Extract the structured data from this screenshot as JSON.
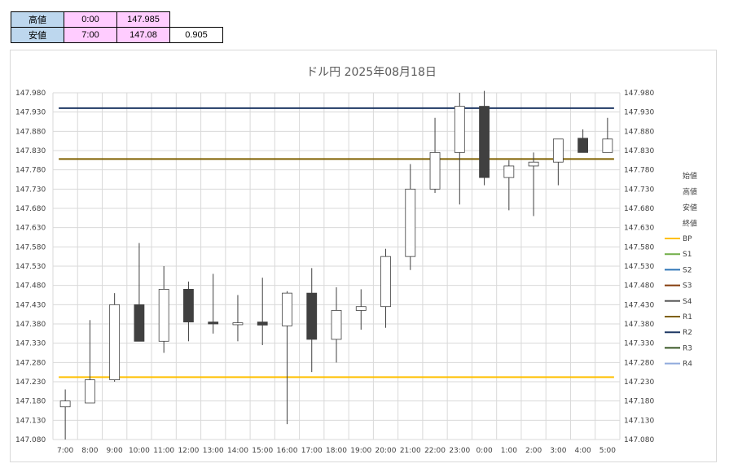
{
  "info_table": {
    "rows": [
      {
        "label": "高値",
        "time": "0:00",
        "price": "147.985",
        "diff": ""
      },
      {
        "label": "安値",
        "time": "7:00",
        "price": "147.08",
        "diff": "0.905"
      }
    ]
  },
  "chart_data": {
    "type": "candlestick",
    "title": "ドル円  2025年08月18日",
    "ylim": [
      147.08,
      147.98
    ],
    "y_ticks": [
      "147.080",
      "147.130",
      "147.180",
      "147.230",
      "147.280",
      "147.330",
      "147.380",
      "147.430",
      "147.480",
      "147.530",
      "147.580",
      "147.630",
      "147.680",
      "147.730",
      "147.780",
      "147.830",
      "147.880",
      "147.930",
      "147.980"
    ],
    "grid": true,
    "categories": [
      "7:00",
      "8:00",
      "9:00",
      "10:00",
      "11:00",
      "12:00",
      "13:00",
      "14:00",
      "15:00",
      "16:00",
      "17:00",
      "18:00",
      "19:00",
      "20:00",
      "21:00",
      "22:00",
      "23:00",
      "0:00",
      "1:00",
      "2:00",
      "3:00",
      "4:00",
      "5:00"
    ],
    "candles": [
      {
        "open": 147.165,
        "high": 147.21,
        "low": 147.08,
        "close": 147.18
      },
      {
        "open": 147.175,
        "high": 147.39,
        "low": 147.175,
        "close": 147.235
      },
      {
        "open": 147.235,
        "high": 147.46,
        "low": 147.23,
        "close": 147.43
      },
      {
        "open": 147.43,
        "high": 147.59,
        "low": 147.335,
        "close": 147.335
      },
      {
        "open": 147.335,
        "high": 147.53,
        "low": 147.305,
        "close": 147.47
      },
      {
        "open": 147.47,
        "high": 147.49,
        "low": 147.335,
        "close": 147.385
      },
      {
        "open": 147.385,
        "high": 147.51,
        "low": 147.355,
        "close": 147.38
      },
      {
        "open": 147.378,
        "high": 147.455,
        "low": 147.335,
        "close": 147.383
      },
      {
        "open": 147.385,
        "high": 147.5,
        "low": 147.325,
        "close": 147.377
      },
      {
        "open": 147.375,
        "high": 147.465,
        "low": 147.12,
        "close": 147.46
      },
      {
        "open": 147.46,
        "high": 147.525,
        "low": 147.255,
        "close": 147.34
      },
      {
        "open": 147.34,
        "high": 147.475,
        "low": 147.28,
        "close": 147.415
      },
      {
        "open": 147.415,
        "high": 147.47,
        "low": 147.365,
        "close": 147.425
      },
      {
        "open": 147.425,
        "high": 147.575,
        "low": 147.37,
        "close": 147.555
      },
      {
        "open": 147.555,
        "high": 147.795,
        "low": 147.52,
        "close": 147.73
      },
      {
        "open": 147.73,
        "high": 147.915,
        "low": 147.72,
        "close": 147.825
      },
      {
        "open": 147.825,
        "high": 147.98,
        "low": 147.69,
        "close": 147.945
      },
      {
        "open": 147.945,
        "high": 147.985,
        "low": 147.74,
        "close": 147.76
      },
      {
        "open": 147.76,
        "high": 147.805,
        "low": 147.675,
        "close": 147.79
      },
      {
        "open": 147.79,
        "high": 147.825,
        "low": 147.66,
        "close": 147.8
      },
      {
        "open": 147.8,
        "high": 147.86,
        "low": 147.74,
        "close": 147.86
      },
      {
        "open": 147.862,
        "high": 147.885,
        "low": 147.825,
        "close": 147.825
      },
      {
        "open": 147.825,
        "high": 147.915,
        "low": 147.825,
        "close": 147.86
      }
    ],
    "reference_lines": [
      {
        "name": "BP",
        "value": 147.242,
        "color": "#ffc000"
      },
      {
        "name": "R1",
        "value": 147.808,
        "color": "#7f6000"
      },
      {
        "name": "R2",
        "value": 147.94,
        "color": "#1f3864"
      }
    ],
    "legend": {
      "placement": "right",
      "plain_items": [
        "始値",
        "高値",
        "安値",
        "終値"
      ],
      "line_items": [
        {
          "name": "BP",
          "color": "#ffc000"
        },
        {
          "name": "S1",
          "color": "#70ad47"
        },
        {
          "name": "S2",
          "color": "#2e75b6"
        },
        {
          "name": "S3",
          "color": "#843c0c"
        },
        {
          "name": "S4",
          "color": "#595959"
        },
        {
          "name": "R1",
          "color": "#7f6000"
        },
        {
          "name": "R2",
          "color": "#1f3864"
        },
        {
          "name": "R3",
          "color": "#375623"
        },
        {
          "name": "R4",
          "color": "#8faadc"
        }
      ]
    },
    "colors": {
      "up_fill": "#ffffff",
      "down_fill": "#404040",
      "candle_stroke": "#404040",
      "grid": "#d9d9d9"
    }
  }
}
